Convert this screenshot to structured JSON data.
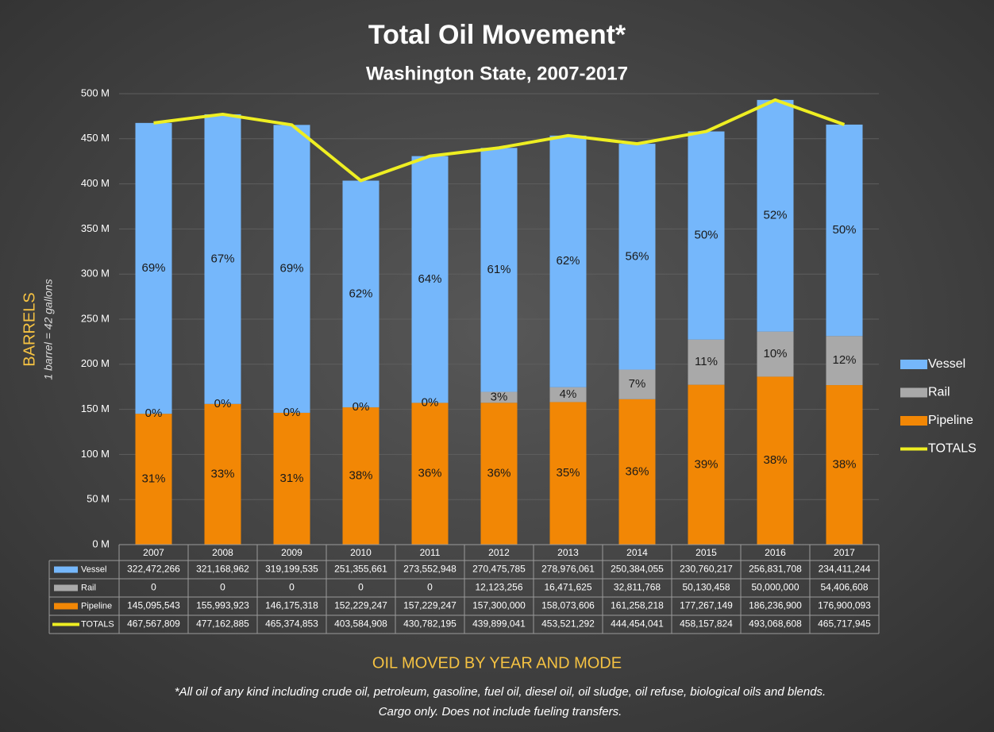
{
  "chart_data": {
    "type": "bar",
    "stacked": true,
    "title": "Total Oil Movement*",
    "subtitle": "Washington State, 2007-2017",
    "y_label": "BARRELS",
    "y_sublabel": "1 barrel = 42 gallons",
    "x_label": "OIL MOVED BY YEAR AND MODE",
    "notes": [
      "*All oil of any kind including crude oil, petroleum, gasoline, fuel oil, diesel oil, oil sludge, oil refuse, biological oils and blends.",
      "Cargo only. Does not include fueling transfers."
    ],
    "categories": [
      "2007",
      "2008",
      "2009",
      "2010",
      "2011",
      "2012",
      "2013",
      "2014",
      "2015",
      "2016",
      "2017"
    ],
    "ylim": [
      0,
      500000000
    ],
    "yticks": [
      {
        "value": 0,
        "label": "0 M"
      },
      {
        "value": 50000000,
        "label": "50 M"
      },
      {
        "value": 100000000,
        "label": "100 M"
      },
      {
        "value": 150000000,
        "label": "150 M"
      },
      {
        "value": 200000000,
        "label": "200 M"
      },
      {
        "value": 250000000,
        "label": "250 M"
      },
      {
        "value": 300000000,
        "label": "300 M"
      },
      {
        "value": 350000000,
        "label": "350 M"
      },
      {
        "value": 400000000,
        "label": "400 M"
      },
      {
        "value": 450000000,
        "label": "450 M"
      },
      {
        "value": 500000000,
        "label": "500 M"
      }
    ],
    "grid": true,
    "legend": "right",
    "series": [
      {
        "name": "Vessel",
        "type": "bar",
        "color": "#75b7fb",
        "values": [
          322472266,
          321168962,
          319199535,
          251355661,
          273552948,
          270475785,
          278976061,
          250384055,
          230760217,
          256831708,
          234411244
        ],
        "value_labels": [
          "322,472,266",
          "321,168,962",
          "319,199,535",
          "251,355,661",
          "273,552,948",
          "270,475,785",
          "278,976,061",
          "250,384,055",
          "230,760,217",
          "256,831,708",
          "234,411,244"
        ],
        "percent_labels": [
          "69%",
          "67%",
          "69%",
          "62%",
          "64%",
          "61%",
          "62%",
          "56%",
          "50%",
          "52%",
          "50%"
        ]
      },
      {
        "name": "Rail",
        "type": "bar",
        "color": "#a9a9a9",
        "values": [
          0,
          0,
          0,
          0,
          0,
          12123256,
          16471625,
          32811768,
          50130458,
          50000000,
          54406608
        ],
        "value_labels": [
          "0",
          "0",
          "0",
          "0",
          "0",
          "12,123,256",
          "16,471,625",
          "32,811,768",
          "50,130,458",
          "50,000,000",
          "54,406,608"
        ],
        "percent_labels": [
          "0%",
          "0%",
          "0%",
          "0%",
          "0%",
          "3%",
          "4%",
          "7%",
          "11%",
          "10%",
          "12%"
        ]
      },
      {
        "name": "Pipeline",
        "type": "bar",
        "color": "#f28705",
        "values": [
          145095543,
          155993923,
          146175318,
          152229247,
          157229247,
          157300000,
          158073606,
          161258218,
          177267149,
          186236900,
          176900093
        ],
        "value_labels": [
          "145,095,543",
          "155,993,923",
          "146,175,318",
          "152,229,247",
          "157,229,247",
          "157,300,000",
          "158,073,606",
          "161,258,218",
          "177,267,149",
          "186,236,900",
          "176,900,093"
        ],
        "percent_labels": [
          "31%",
          "33%",
          "31%",
          "38%",
          "36%",
          "36%",
          "35%",
          "36%",
          "39%",
          "38%",
          "38%"
        ]
      },
      {
        "name": "TOTALS",
        "type": "line",
        "color": "#eeee22",
        "values": [
          467567809,
          477162885,
          465374853,
          403584908,
          430782195,
          439899041,
          453521292,
          444454041,
          458157824,
          493068608,
          465717945
        ],
        "value_labels": [
          "467,567,809",
          "477,162,885",
          "465,374,853",
          "403,584,908",
          "430,782,195",
          "439,899,041",
          "453,521,292",
          "444,454,041",
          "458,157,824",
          "493,068,608",
          "465,717,945"
        ]
      }
    ]
  }
}
